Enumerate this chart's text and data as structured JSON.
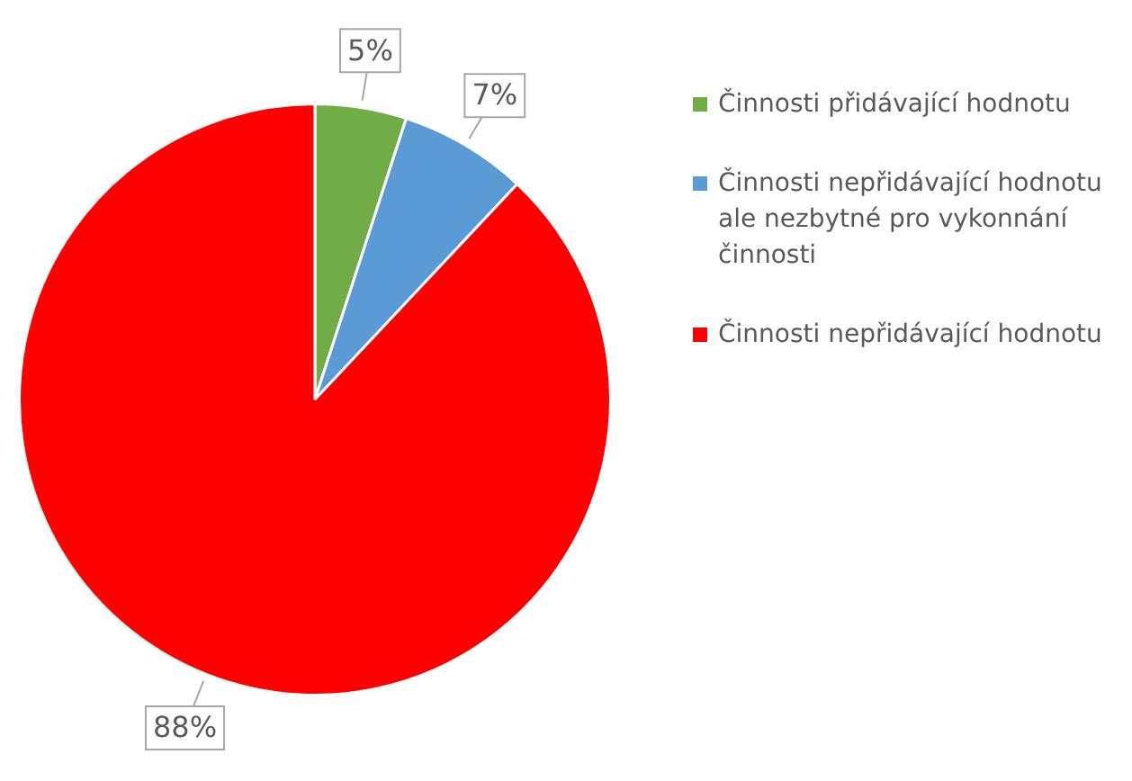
{
  "chart_data": {
    "type": "pie",
    "categories": [
      "Činnosti přidávající hodnotu",
      "Činnosti nepřidávající hodnotu ale nezbytné pro vykonnání činnosti",
      "Činnosti nepřidávající hodnotu"
    ],
    "values": [
      5,
      7,
      88
    ],
    "value_labels": [
      "5%",
      "7%",
      "88%"
    ],
    "colors": [
      "#70ad47",
      "#5b9bd5",
      "#ff0000"
    ],
    "legend": "right"
  }
}
